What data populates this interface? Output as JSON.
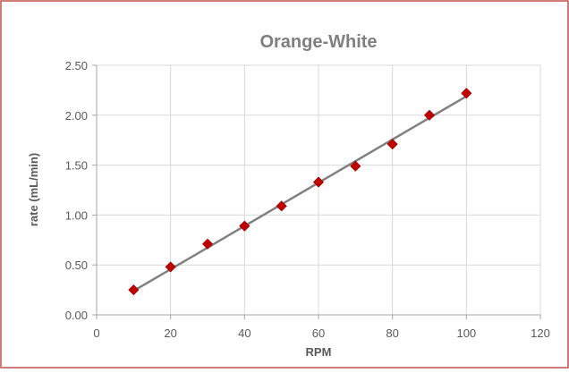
{
  "chart_data": {
    "type": "scatter",
    "title": "Orange-White",
    "xlabel": "RPM",
    "ylabel": "rate (mL/min)",
    "xlim": [
      0,
      120
    ],
    "ylim": [
      0,
      2.5
    ],
    "x_ticks": [
      "0",
      "20",
      "40",
      "60",
      "80",
      "100",
      "120"
    ],
    "y_ticks": [
      "0.00",
      "0.50",
      "1.00",
      "1.50",
      "2.00",
      "2.50"
    ],
    "grid": true,
    "legend": "none",
    "series": [
      {
        "x": [
          10,
          20,
          30,
          40,
          50,
          60,
          70,
          80,
          90,
          100
        ],
        "y": [
          0.25,
          0.48,
          0.71,
          0.89,
          1.09,
          1.33,
          1.49,
          1.71,
          2.0,
          2.22
        ],
        "marker": "diamond",
        "color": "#c00000"
      }
    ],
    "trendline": {
      "type": "linear",
      "x": [
        10,
        100
      ],
      "y": [
        0.24,
        2.19
      ],
      "color": "#808080"
    }
  }
}
